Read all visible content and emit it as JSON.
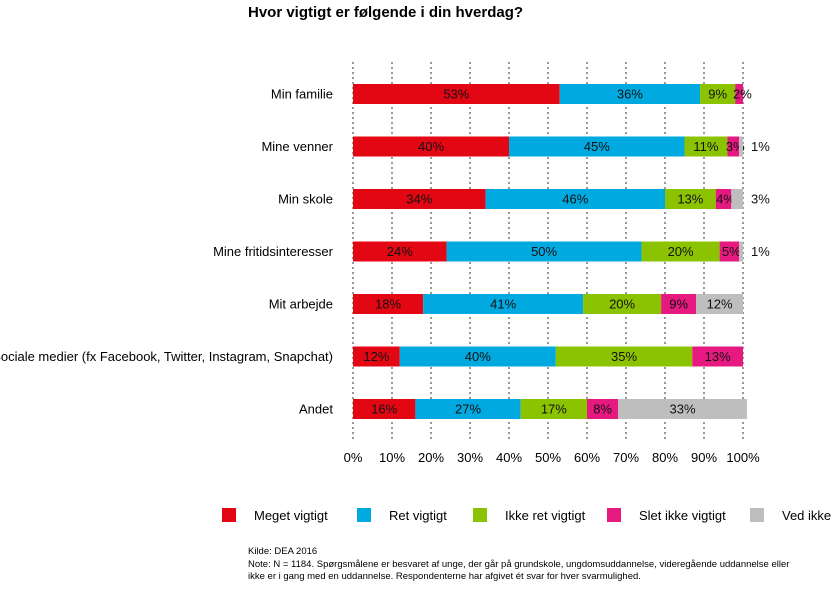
{
  "chart_data": {
    "type": "bar",
    "orientation": "horizontal",
    "stacked": true,
    "title": "Hvor vigtigt er følgende i din hverdag?",
    "categories": [
      "Min familie",
      "Mine venner",
      "Min skole",
      "Mine fritidsinteresser",
      "Mit arbejde",
      "Sociale medier (fx Facebook, Twitter, Instagram, Snapchat)",
      "Andet"
    ],
    "series": [
      {
        "name": "Meget vigtigt",
        "color": "#e30613",
        "values": [
          53,
          40,
          34,
          24,
          18,
          12,
          16
        ]
      },
      {
        "name": "Ret vigtigt",
        "color": "#00a9e0",
        "values": [
          36,
          45,
          46,
          50,
          41,
          40,
          27
        ]
      },
      {
        "name": "Ikke ret vigtigt",
        "color": "#8cc300",
        "values": [
          9,
          11,
          13,
          20,
          20,
          35,
          17
        ]
      },
      {
        "name": "Slet ikke vigtigt",
        "color": "#e5197f",
        "values": [
          2,
          3,
          4,
          5,
          9,
          13,
          8
        ]
      },
      {
        "name": "Ved ikke",
        "color": "#bebebe",
        "values": [
          0,
          1,
          3,
          1,
          12,
          0,
          33
        ]
      }
    ],
    "labels": [
      [
        "53%",
        "36%",
        "9%",
        "2%",
        ""
      ],
      [
        "40%",
        "45%",
        "11%",
        "3%",
        "1%"
      ],
      [
        "34%",
        "46%",
        "13%",
        "4%",
        "3%"
      ],
      [
        "24%",
        "50%",
        "20%",
        "5%",
        "1%"
      ],
      [
        "18%",
        "41%",
        "20%",
        "9%",
        "12%"
      ],
      [
        "12%",
        "40%",
        "35%",
        "13%",
        ""
      ],
      [
        "16%",
        "27%",
        "17%",
        "8%",
        "33%"
      ]
    ],
    "xlim": [
      0,
      100
    ],
    "xticks": [
      "0%",
      "10%",
      "20%",
      "30%",
      "40%",
      "50%",
      "60%",
      "70%",
      "80%",
      "90%",
      "100%"
    ],
    "grid": true,
    "legend_position": "bottom"
  },
  "notes": {
    "source": "Kilde: DEA 2016",
    "note_line1": "Note: N = 1184. Spørgsmålene er besvaret af unge, der går på grundskole, ungdomsuddannelse, videregående uddannelse eller",
    "note_line2": "ikke er i gang med en uddannelse. Respondenterne har afgivet ét svar for hver svarmulighed."
  }
}
